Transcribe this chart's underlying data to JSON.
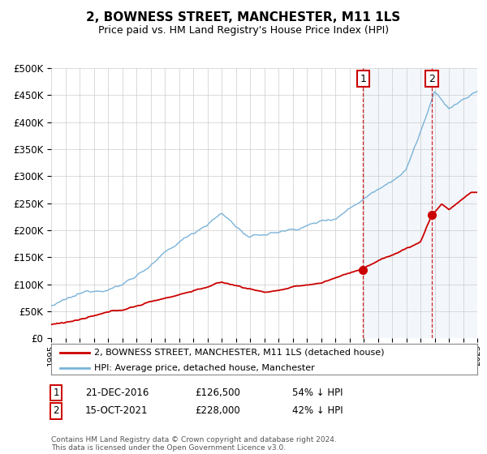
{
  "title": "2, BOWNESS STREET, MANCHESTER, M11 1LS",
  "subtitle": "Price paid vs. HM Land Registry's House Price Index (HPI)",
  "legend_line1": "2, BOWNESS STREET, MANCHESTER, M11 1LS (detached house)",
  "legend_line2": "HPI: Average price, detached house, Manchester",
  "sale1_label": "1",
  "sale1_date": "21-DEC-2016",
  "sale1_price": "£126,500",
  "sale1_note": "54% ↓ HPI",
  "sale2_label": "2",
  "sale2_date": "15-OCT-2021",
  "sale2_price": "£228,000",
  "sale2_note": "42% ↓ HPI",
  "footer": "Contains HM Land Registry data © Crown copyright and database right 2024.\nThis data is licensed under the Open Government Licence v3.0.",
  "hpi_color": "#7bb3d9",
  "hpi_fill_color": "#ddeeff",
  "price_color": "#cc0000",
  "marker_color": "#cc0000",
  "vline_color": "#cc0000",
  "background_color": "#ffffff",
  "grid_color": "#cccccc",
  "highlight_color": "#e8f0f8",
  "ylim": [
    0,
    500000
  ],
  "yticks": [
    0,
    50000,
    100000,
    150000,
    200000,
    250000,
    300000,
    350000,
    400000,
    450000,
    500000
  ],
  "sale1_year": 2016.97,
  "sale1_price_val": 126500,
  "sale2_year": 2021.79,
  "sale2_price_val": 228000
}
